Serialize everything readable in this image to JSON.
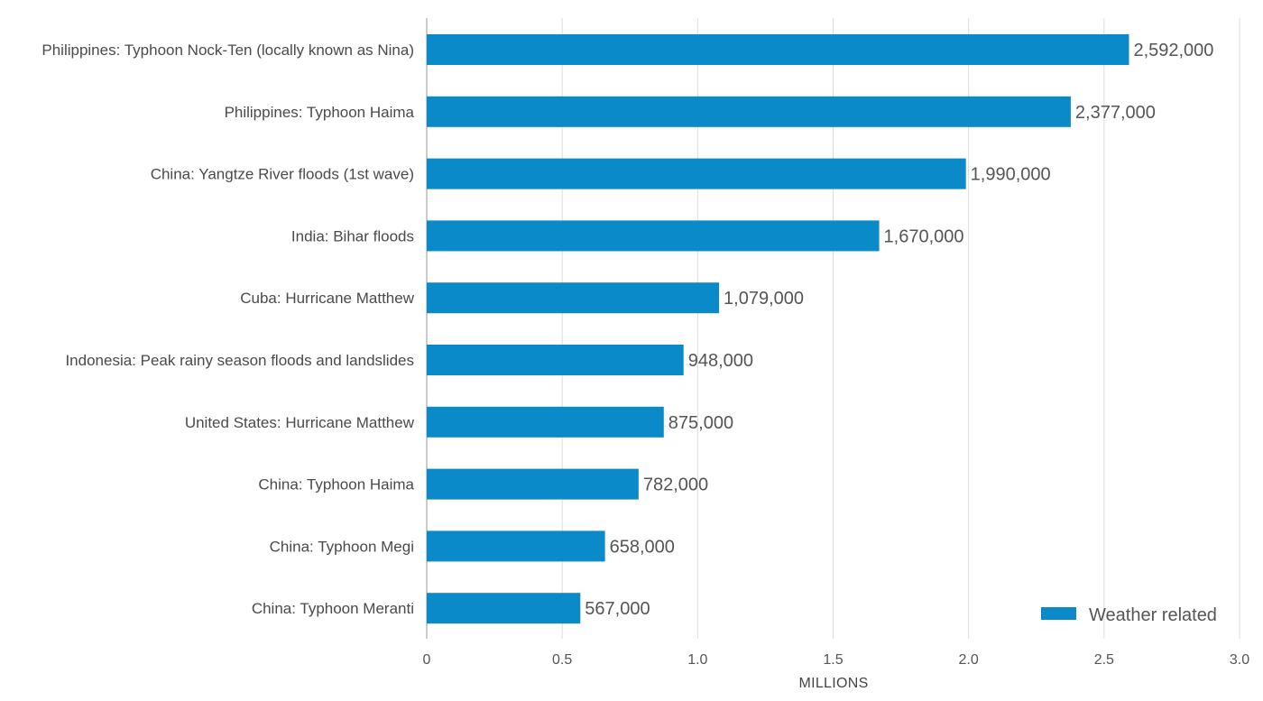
{
  "chart_data": {
    "type": "bar",
    "orientation": "horizontal",
    "title": "",
    "xlabel": "MILLIONS",
    "ylabel": "",
    "xlim": [
      0,
      3.0
    ],
    "xticks": [
      0,
      0.5,
      1.0,
      1.5,
      2.0,
      2.5,
      3.0
    ],
    "xtick_labels": [
      "0",
      "0.5",
      "1.0",
      "1.5",
      "2.0",
      "2.5",
      "3.0"
    ],
    "grid": "vertical",
    "legend": {
      "placement": "bottom-right",
      "entries": [
        "Weather related"
      ]
    },
    "color": "#0b8ac9",
    "categories": [
      "Philippines: Typhoon Nock-Ten (locally known as Nina)",
      "Philippines: Typhoon Haima",
      "China: Yangtze River floods (1st wave)",
      "India: Bihar floods",
      "Cuba: Hurricane Matthew",
      "Indonesia: Peak rainy season floods and landslides",
      "United States: Hurricane Matthew",
      "China: Typhoon Haima",
      "China: Typhoon Megi",
      "China: Typhoon Meranti"
    ],
    "series": [
      {
        "name": "Weather related",
        "values": [
          2592000,
          2377000,
          1990000,
          1670000,
          1079000,
          948000,
          875000,
          782000,
          658000,
          567000
        ],
        "value_labels": [
          "2,592,000",
          "2,377,000",
          "1,990,000",
          "1,670,000",
          "1,079,000",
          "948,000",
          "875,000",
          "782,000",
          "658,000",
          "567,000"
        ]
      }
    ]
  }
}
